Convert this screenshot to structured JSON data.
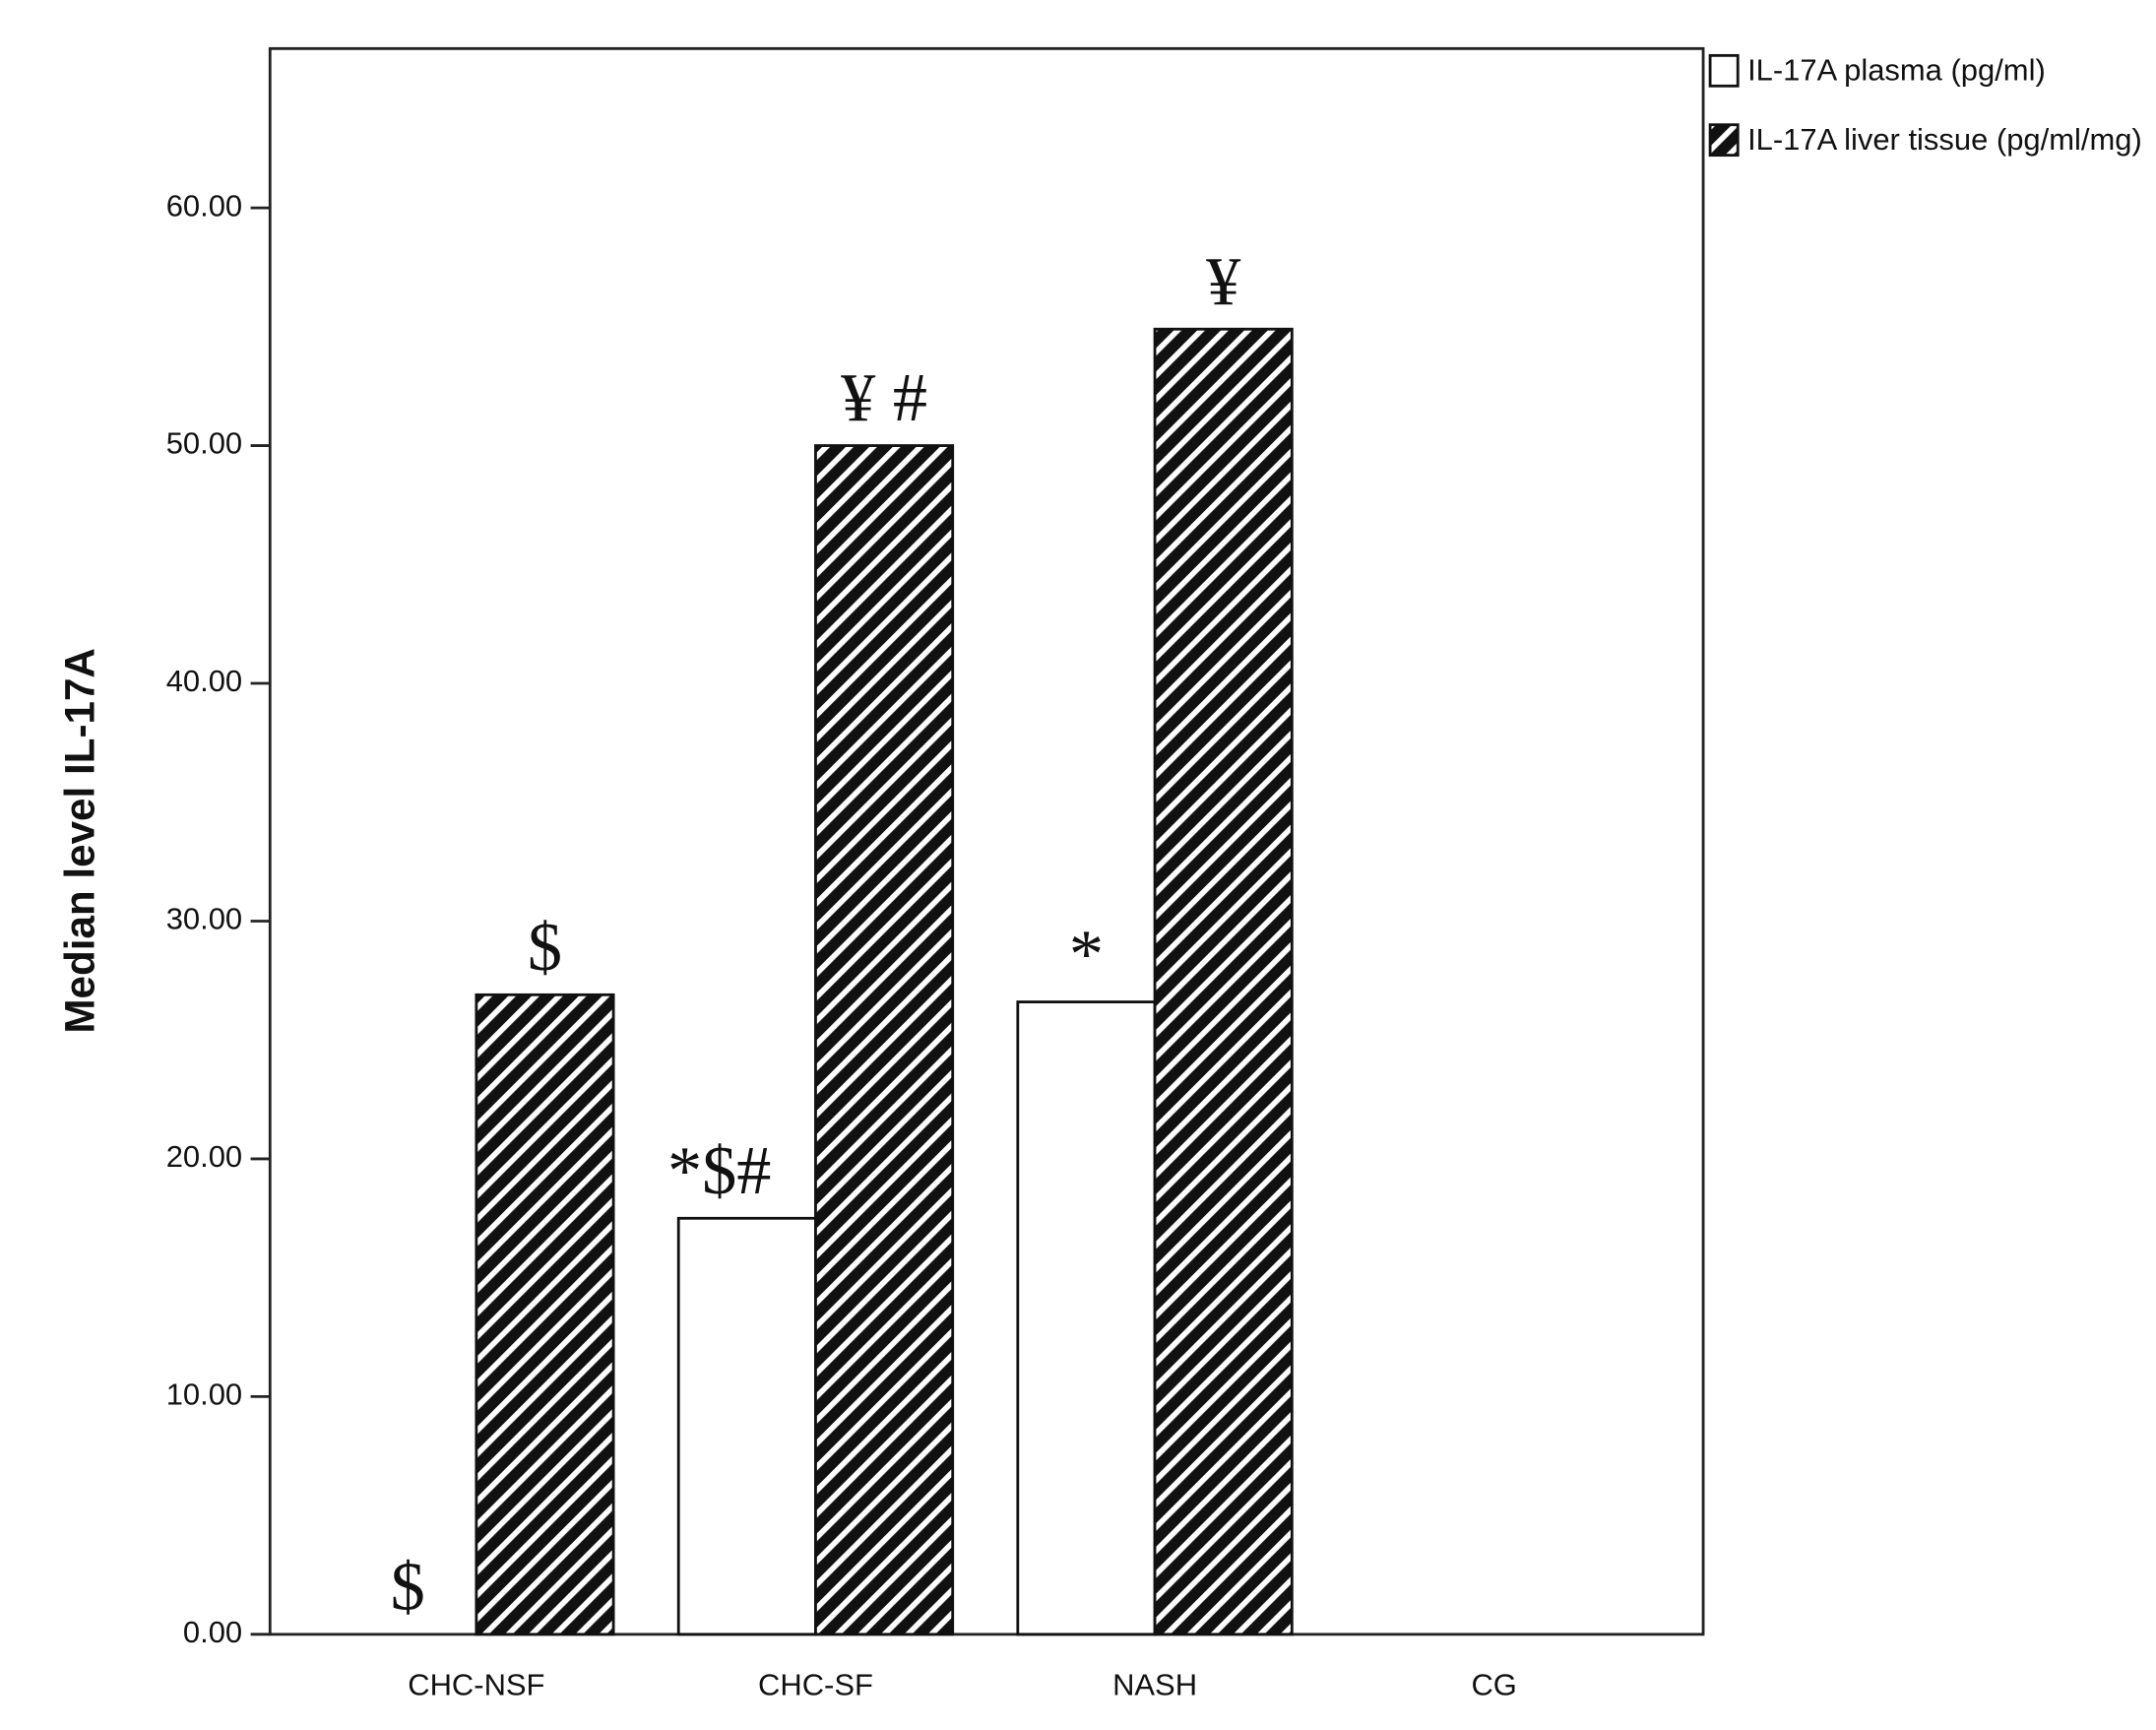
{
  "chart_data": {
    "type": "bar",
    "y_label": "Median level IL-17A",
    "categories": [
      "CHC-NSF",
      "CHC-SF",
      "NASH",
      "CG"
    ],
    "series": [
      {
        "name": "IL-17A plasma (pg/ml)",
        "color": "#ffffff",
        "values": [
          0,
          17.5,
          26.6,
          0
        ],
        "annotations": [
          "$",
          "*$#",
          "*",
          null
        ]
      },
      {
        "name": "IL-17A liver tissue (pg/ml/mg)",
        "color": "hatched",
        "values": [
          26.9,
          50.0,
          54.9,
          0
        ],
        "annotations": [
          "$",
          "¥ #",
          "¥",
          null
        ]
      }
    ],
    "ylim": [
      0,
      66.7
    ],
    "yticks": [
      {
        "value": 0,
        "label": "0.00"
      },
      {
        "value": 10,
        "label": "10.00"
      },
      {
        "value": 20,
        "label": "20.00"
      },
      {
        "value": 30,
        "label": "30.00"
      },
      {
        "value": 40,
        "label": "40.00"
      },
      {
        "value": 50,
        "label": "50.00"
      },
      {
        "value": 60,
        "label": "60.00"
      }
    ],
    "legend": "top-right"
  }
}
